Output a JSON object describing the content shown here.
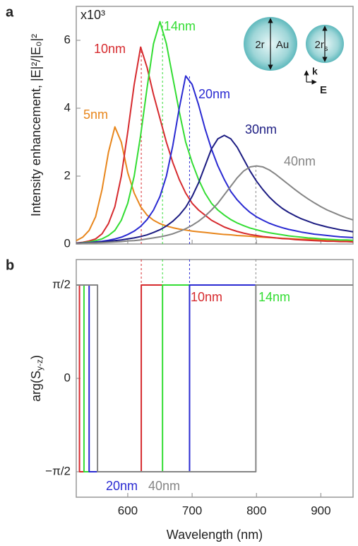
{
  "chart_data": [
    {
      "type": "line",
      "panel": "a",
      "ylabel": "Intensity enhancement, |E|²/|E₀|²",
      "scale_note": "x10³",
      "xlim": [
        520,
        950
      ],
      "xticks": [
        600,
        700,
        800,
        900
      ],
      "ylim": [
        0,
        7
      ],
      "yticks": [
        0,
        2,
        4,
        6
      ],
      "x": [
        520,
        530,
        540,
        550,
        560,
        570,
        580,
        590,
        600,
        610,
        620,
        630,
        640,
        650,
        660,
        670,
        680,
        690,
        700,
        710,
        720,
        730,
        740,
        750,
        760,
        770,
        780,
        790,
        800,
        810,
        820,
        830,
        840,
        850,
        860,
        870,
        880,
        890,
        900,
        910,
        920,
        930,
        940,
        950
      ],
      "series": [
        {
          "name": "5nm",
          "color": "#e8861c",
          "values": [
            0.1,
            0.2,
            0.4,
            0.8,
            1.6,
            2.7,
            3.45,
            3.0,
            2.1,
            1.5,
            1.1,
            0.85,
            0.7,
            0.6,
            0.53,
            0.48,
            0.44,
            0.41,
            0.38,
            0.36,
            0.34,
            0.32,
            0.3,
            0.28,
            0.27,
            0.25,
            0.24,
            0.23,
            0.21,
            0.2,
            0.19,
            0.18,
            0.17,
            0.16,
            0.15,
            0.14,
            0.14,
            0.13,
            0.12,
            0.12,
            0.11,
            0.11,
            0.1,
            0.1
          ]
        },
        {
          "name": "10nm",
          "color": "#d62a2e",
          "values": [
            0.03,
            0.05,
            0.09,
            0.15,
            0.3,
            0.6,
            1.1,
            2.0,
            3.3,
            4.7,
            5.8,
            5.2,
            4.4,
            3.7,
            3.0,
            2.4,
            1.9,
            1.5,
            1.2,
            1.0,
            0.85,
            0.7,
            0.6,
            0.5,
            0.43,
            0.37,
            0.32,
            0.28,
            0.25,
            0.22,
            0.2,
            0.18,
            0.16,
            0.15,
            0.13,
            0.12,
            0.11,
            0.1,
            0.09,
            0.08,
            0.08,
            0.07,
            0.07,
            0.06
          ]
        },
        {
          "name": "14nm",
          "color": "#33dd33",
          "values": [
            0.02,
            0.04,
            0.06,
            0.1,
            0.15,
            0.25,
            0.4,
            0.7,
            1.2,
            2.0,
            3.2,
            4.6,
            5.9,
            6.55,
            5.9,
            4.9,
            3.9,
            3.0,
            2.4,
            1.9,
            1.5,
            1.2,
            1.0,
            0.85,
            0.72,
            0.62,
            0.54,
            0.47,
            0.42,
            0.37,
            0.33,
            0.3,
            0.27,
            0.24,
            0.22,
            0.2,
            0.18,
            0.17,
            0.15,
            0.14,
            0.13,
            0.12,
            0.12,
            0.11
          ]
        },
        {
          "name": "20nm",
          "color": "#2a2ad2",
          "values": [
            0.02,
            0.03,
            0.04,
            0.06,
            0.08,
            0.11,
            0.15,
            0.2,
            0.28,
            0.38,
            0.52,
            0.72,
            1.0,
            1.4,
            2.0,
            2.9,
            4.0,
            4.95,
            4.7,
            4.1,
            3.4,
            2.8,
            2.3,
            1.9,
            1.55,
            1.3,
            1.1,
            0.93,
            0.8,
            0.7,
            0.61,
            0.54,
            0.48,
            0.43,
            0.39,
            0.35,
            0.32,
            0.29,
            0.27,
            0.25,
            0.23,
            0.21,
            0.2,
            0.19
          ]
        },
        {
          "name": "30nm",
          "color": "#1c1c82",
          "values": [
            0.02,
            0.03,
            0.04,
            0.05,
            0.06,
            0.08,
            0.1,
            0.12,
            0.15,
            0.18,
            0.22,
            0.27,
            0.34,
            0.42,
            0.53,
            0.67,
            0.85,
            1.08,
            1.4,
            1.8,
            2.3,
            2.8,
            3.1,
            3.2,
            3.1,
            2.85,
            2.5,
            2.15,
            1.85,
            1.6,
            1.38,
            1.2,
            1.05,
            0.93,
            0.83,
            0.74,
            0.67,
            0.6,
            0.55,
            0.5,
            0.46,
            0.42,
            0.39,
            0.36
          ]
        },
        {
          "name": "40nm",
          "color": "#858585",
          "values": [
            0.01,
            0.02,
            0.03,
            0.03,
            0.04,
            0.05,
            0.06,
            0.07,
            0.09,
            0.1,
            0.12,
            0.15,
            0.18,
            0.21,
            0.25,
            0.3,
            0.37,
            0.45,
            0.55,
            0.67,
            0.82,
            1.0,
            1.2,
            1.45,
            1.7,
            1.95,
            2.15,
            2.27,
            2.3,
            2.27,
            2.18,
            2.05,
            1.9,
            1.75,
            1.6,
            1.46,
            1.33,
            1.21,
            1.1,
            1.0,
            0.92,
            0.84,
            0.77,
            0.71
          ]
        }
      ],
      "inset": {
        "big": "2r",
        "metal": "Au",
        "small": [
          "2r",
          "s"
        ],
        "k": "k",
        "e": "E"
      }
    },
    {
      "type": "line",
      "panel": "b",
      "ylabel": [
        "arg(S",
        "y-z",
        ")"
      ],
      "xlabel": "Wavelength (nm)",
      "xlim": [
        520,
        950
      ],
      "xticks": [
        600,
        700,
        800,
        900
      ],
      "ylim": [
        -2,
        2
      ],
      "yticks": [
        {
          "value": 1.5708,
          "label": "π/2"
        },
        0,
        {
          "value": -1.5708,
          "label": "−π/2"
        }
      ],
      "series": [
        {
          "name": "10nm",
          "color": "#d62a2e",
          "x": [
            520,
            525,
            525,
            621,
            621,
            950
          ],
          "values": [
            1.5708,
            1.5708,
            -1.5708,
            -1.5708,
            1.5708,
            1.5708
          ]
        },
        {
          "name": "14nm",
          "color": "#33dd33",
          "x": [
            520,
            532,
            532,
            654,
            654,
            950
          ],
          "values": [
            1.5708,
            1.5708,
            -1.5708,
            -1.5708,
            1.5708,
            1.5708
          ]
        },
        {
          "name": "20nm",
          "color": "#2a2ad2",
          "x": [
            520,
            540,
            540,
            696,
            696,
            950
          ],
          "values": [
            1.5708,
            1.5708,
            -1.5708,
            -1.5708,
            1.5708,
            1.5708
          ]
        },
        {
          "name": "40nm",
          "color": "#858585",
          "x": [
            520,
            553,
            553,
            799,
            799,
            950
          ],
          "values": [
            1.5708,
            1.5708,
            -1.5708,
            -1.5708,
            1.5708,
            1.5708
          ]
        }
      ]
    }
  ]
}
